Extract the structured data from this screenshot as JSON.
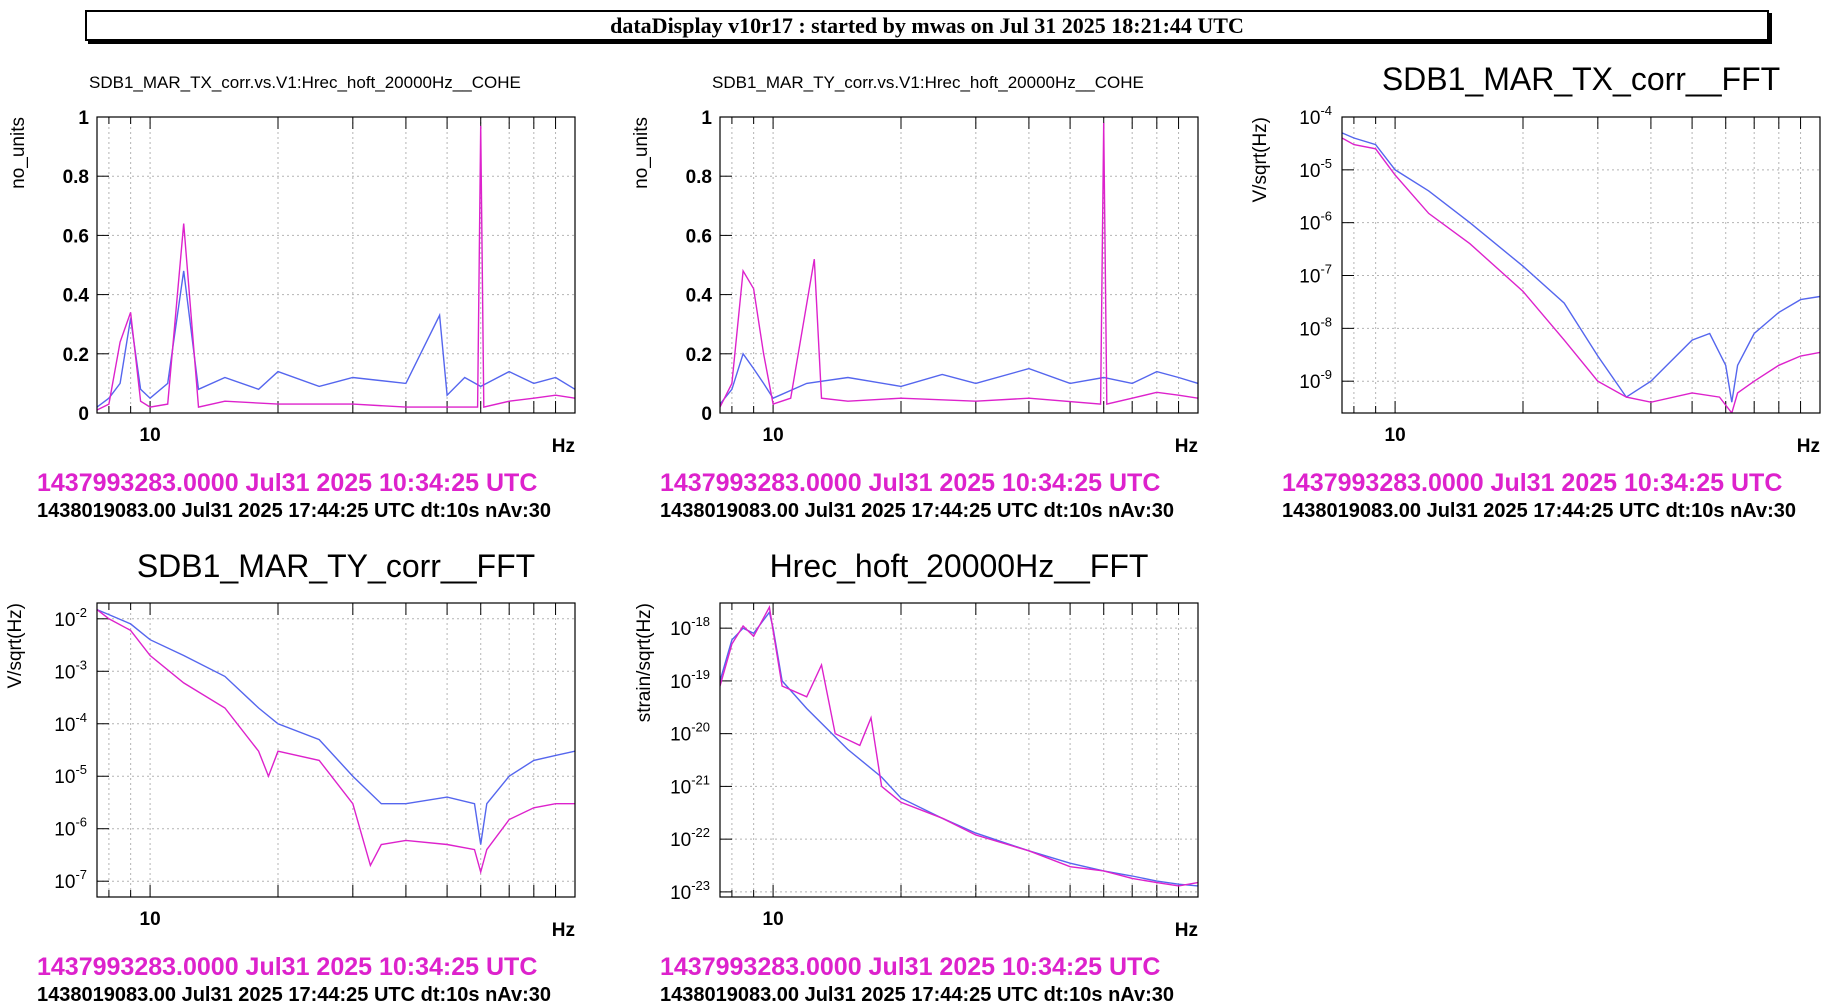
{
  "header": {
    "title": "dataDisplay v10r17 : started by mwas on Jul 31 2025 18:21:44 UTC"
  },
  "colors": {
    "blue": "#5566ee",
    "magenta": "#dd22cc",
    "grid": "#b4b4b4"
  },
  "chart_data": [
    {
      "id": "p1",
      "type": "line",
      "log_x": true,
      "log_y": false,
      "title": "SDB1_MAR_TX_corr.vs.V1:Hrec_hoft_20000Hz__COHE",
      "xlabel": "Hz",
      "ylabel": "no_units",
      "xlim": [
        7.5,
        100
      ],
      "ylim": [
        0,
        1
      ],
      "ytick_labels": [
        "0",
        "0.2",
        "0.4",
        "0.6",
        "0.8",
        "1"
      ],
      "xtick_labels": [
        "10"
      ],
      "footer_time": "1437993283.0000 Jul31 2025 10:34:25 UTC",
      "footer_info": "1438019083.00 Jul31 2025 17:44:25 UTC dt:10s nAv:30",
      "series": [
        {
          "color": "blue",
          "points": [
            [
              7.5,
              0.02
            ],
            [
              8,
              0.05
            ],
            [
              8.5,
              0.1
            ],
            [
              9,
              0.32
            ],
            [
              9.5,
              0.08
            ],
            [
              10,
              0.05
            ],
            [
              11,
              0.1
            ],
            [
              12,
              0.48
            ],
            [
              13,
              0.08
            ],
            [
              15,
              0.12
            ],
            [
              18,
              0.08
            ],
            [
              20,
              0.14
            ],
            [
              25,
              0.09
            ],
            [
              30,
              0.12
            ],
            [
              40,
              0.1
            ],
            [
              48,
              0.33
            ],
            [
              50,
              0.06
            ],
            [
              55,
              0.12
            ],
            [
              60,
              0.09
            ],
            [
              70,
              0.14
            ],
            [
              80,
              0.1
            ],
            [
              90,
              0.12
            ],
            [
              100,
              0.08
            ]
          ]
        },
        {
          "color": "magenta",
          "points": [
            [
              7.5,
              0.01
            ],
            [
              8,
              0.03
            ],
            [
              8.5,
              0.24
            ],
            [
              9,
              0.34
            ],
            [
              9.5,
              0.04
            ],
            [
              10,
              0.02
            ],
            [
              11,
              0.03
            ],
            [
              12,
              0.64
            ],
            [
              13,
              0.02
            ],
            [
              15,
              0.04
            ],
            [
              20,
              0.03
            ],
            [
              30,
              0.03
            ],
            [
              40,
              0.02
            ],
            [
              59,
              0.02
            ],
            [
              60,
              0.97
            ],
            [
              61,
              0.02
            ],
            [
              70,
              0.04
            ],
            [
              80,
              0.05
            ],
            [
              90,
              0.06
            ],
            [
              100,
              0.05
            ]
          ]
        }
      ]
    },
    {
      "id": "p2",
      "type": "line",
      "log_x": true,
      "log_y": false,
      "title": "SDB1_MAR_TY_corr.vs.V1:Hrec_hoft_20000Hz__COHE",
      "xlabel": "Hz",
      "ylabel": "no_units",
      "xlim": [
        7.5,
        100
      ],
      "ylim": [
        0,
        1
      ],
      "ytick_labels": [
        "0",
        "0.2",
        "0.4",
        "0.6",
        "0.8",
        "1"
      ],
      "xtick_labels": [
        "10"
      ],
      "footer_time": "1437993283.0000 Jul31 2025 10:34:25 UTC",
      "footer_info": "1438019083.00 Jul31 2025 17:44:25 UTC dt:10s nAv:30",
      "series": [
        {
          "color": "blue",
          "points": [
            [
              7.5,
              0.03
            ],
            [
              8,
              0.08
            ],
            [
              8.5,
              0.2
            ],
            [
              9,
              0.15
            ],
            [
              9.5,
              0.1
            ],
            [
              10,
              0.05
            ],
            [
              12,
              0.1
            ],
            [
              15,
              0.12
            ],
            [
              20,
              0.09
            ],
            [
              25,
              0.13
            ],
            [
              30,
              0.1
            ],
            [
              40,
              0.15
            ],
            [
              50,
              0.1
            ],
            [
              60,
              0.12
            ],
            [
              70,
              0.1
            ],
            [
              80,
              0.14
            ],
            [
              90,
              0.12
            ],
            [
              100,
              0.1
            ]
          ]
        },
        {
          "color": "magenta",
          "points": [
            [
              7.5,
              0.02
            ],
            [
              8,
              0.1
            ],
            [
              8.5,
              0.48
            ],
            [
              9,
              0.42
            ],
            [
              9.5,
              0.2
            ],
            [
              10,
              0.03
            ],
            [
              11,
              0.05
            ],
            [
              12.5,
              0.52
            ],
            [
              13,
              0.05
            ],
            [
              15,
              0.04
            ],
            [
              20,
              0.05
            ],
            [
              30,
              0.04
            ],
            [
              40,
              0.05
            ],
            [
              59,
              0.03
            ],
            [
              60,
              0.98
            ],
            [
              61,
              0.03
            ],
            [
              70,
              0.05
            ],
            [
              80,
              0.07
            ],
            [
              90,
              0.06
            ],
            [
              100,
              0.05
            ]
          ]
        }
      ]
    },
    {
      "id": "p3",
      "type": "line",
      "log_x": true,
      "log_y": true,
      "title": "SDB1_MAR_TX_corr__FFT",
      "xlabel": "Hz",
      "ylabel": "V/sqrt(Hz)",
      "xlim": [
        7.5,
        100
      ],
      "ylim": [
        2.5e-10,
        0.0001
      ],
      "ytick_exponents": [
        -4,
        -5,
        -6,
        -7,
        -8,
        -9
      ],
      "xtick_labels": [
        "10"
      ],
      "footer_time": "1437993283.0000 Jul31 2025 10:34:25 UTC",
      "footer_info": "1438019083.00 Jul31 2025 17:44:25 UTC dt:10s nAv:30",
      "series": [
        {
          "color": "blue",
          "points": [
            [
              7.5,
              5e-05
            ],
            [
              8,
              4e-05
            ],
            [
              9,
              3e-05
            ],
            [
              10,
              1e-05
            ],
            [
              12,
              4e-06
            ],
            [
              15,
              1e-06
            ],
            [
              20,
              1.5e-07
            ],
            [
              25,
              3e-08
            ],
            [
              30,
              3e-09
            ],
            [
              35,
              5e-10
            ],
            [
              40,
              1e-09
            ],
            [
              50,
              6e-09
            ],
            [
              55,
              8e-09
            ],
            [
              60,
              2e-09
            ],
            [
              62,
              4e-10
            ],
            [
              64,
              2e-09
            ],
            [
              70,
              8e-09
            ],
            [
              80,
              2e-08
            ],
            [
              90,
              3.5e-08
            ],
            [
              100,
              4e-08
            ]
          ]
        },
        {
          "color": "magenta",
          "points": [
            [
              7.5,
              4e-05
            ],
            [
              8,
              3e-05
            ],
            [
              9,
              2.5e-05
            ],
            [
              10,
              8e-06
            ],
            [
              12,
              1.5e-06
            ],
            [
              15,
              4e-07
            ],
            [
              20,
              5e-08
            ],
            [
              25,
              6e-09
            ],
            [
              30,
              1e-09
            ],
            [
              35,
              5e-10
            ],
            [
              40,
              4e-10
            ],
            [
              50,
              6e-10
            ],
            [
              58,
              5e-10
            ],
            [
              62,
              2.5e-10
            ],
            [
              64,
              6e-10
            ],
            [
              70,
              1e-09
            ],
            [
              80,
              2e-09
            ],
            [
              90,
              3e-09
            ],
            [
              100,
              3.5e-09
            ]
          ]
        }
      ]
    },
    {
      "id": "p4",
      "type": "line",
      "log_x": true,
      "log_y": true,
      "title": "SDB1_MAR_TY_corr__FFT",
      "xlabel": "Hz",
      "ylabel": "V/sqrt(Hz)",
      "xlim": [
        7.5,
        100
      ],
      "ylim": [
        5e-08,
        0.02
      ],
      "ytick_exponents": [
        -2,
        -3,
        -4,
        -5,
        -6,
        -7
      ],
      "xtick_labels": [
        "10"
      ],
      "footer_time": "1437993283.0000 Jul31 2025 10:34:25 UTC",
      "footer_info": "1438019083.00 Jul31 2025 17:44:25 UTC dt:10s nAv:30",
      "series": [
        {
          "color": "blue",
          "points": [
            [
              7.5,
              0.015
            ],
            [
              8,
              0.012
            ],
            [
              9,
              0.008
            ],
            [
              10,
              0.004
            ],
            [
              12,
              0.002
            ],
            [
              15,
              0.0008
            ],
            [
              18,
              0.0002
            ],
            [
              20,
              0.0001
            ],
            [
              25,
              5e-05
            ],
            [
              30,
              1e-05
            ],
            [
              35,
              3e-06
            ],
            [
              40,
              3e-06
            ],
            [
              50,
              4e-06
            ],
            [
              58,
              3e-06
            ],
            [
              60,
              5e-07
            ],
            [
              62,
              3e-06
            ],
            [
              70,
              1e-05
            ],
            [
              80,
              2e-05
            ],
            [
              90,
              2.5e-05
            ],
            [
              100,
              3e-05
            ]
          ]
        },
        {
          "color": "magenta",
          "points": [
            [
              7.5,
              0.015
            ],
            [
              8,
              0.01
            ],
            [
              9,
              0.006
            ],
            [
              10,
              0.002
            ],
            [
              12,
              0.0006
            ],
            [
              15,
              0.0002
            ],
            [
              18,
              3e-05
            ],
            [
              19,
              1e-05
            ],
            [
              20,
              3e-05
            ],
            [
              25,
              2e-05
            ],
            [
              30,
              3e-06
            ],
            [
              33,
              2e-07
            ],
            [
              35,
              5e-07
            ],
            [
              40,
              6e-07
            ],
            [
              50,
              5e-07
            ],
            [
              58,
              4e-07
            ],
            [
              60,
              1.5e-07
            ],
            [
              62,
              4e-07
            ],
            [
              70,
              1.5e-06
            ],
            [
              80,
              2.5e-06
            ],
            [
              90,
              3e-06
            ],
            [
              100,
              3e-06
            ]
          ]
        }
      ]
    },
    {
      "id": "p5",
      "type": "line",
      "log_x": true,
      "log_y": true,
      "title": "Hrec_hoft_20000Hz__FFT",
      "xlabel": "Hz",
      "ylabel": "strain/sqrt(Hz)",
      "xlim": [
        7.5,
        100
      ],
      "ylim": [
        8e-24,
        3e-18
      ],
      "ytick_exponents": [
        -18,
        -19,
        -20,
        -21,
        -22,
        -23
      ],
      "xtick_labels": [
        "10"
      ],
      "footer_time": "1437993283.0000 Jul31 2025 10:34:25 UTC",
      "footer_info": "1438019083.00 Jul31 2025 17:44:25 UTC dt:10s nAv:30",
      "series": [
        {
          "color": "blue",
          "points": [
            [
              7.5,
              1e-19
            ],
            [
              8,
              6e-19
            ],
            [
              8.5,
              1e-18
            ],
            [
              9,
              8e-19
            ],
            [
              9.8,
              2e-18
            ],
            [
              10,
              1e-18
            ],
            [
              10.5,
              1e-19
            ],
            [
              12,
              3e-20
            ],
            [
              15,
              5e-21
            ],
            [
              18,
              1.5e-21
            ],
            [
              20,
              6e-22
            ],
            [
              25,
              2.5e-22
            ],
            [
              30,
              1.3e-22
            ],
            [
              40,
              6e-23
            ],
            [
              50,
              3.5e-23
            ],
            [
              60,
              2.5e-23
            ],
            [
              70,
              2e-23
            ],
            [
              80,
              1.6e-23
            ],
            [
              90,
              1.4e-23
            ],
            [
              100,
              1.3e-23
            ]
          ]
        },
        {
          "color": "magenta",
          "points": [
            [
              7.5,
              8e-20
            ],
            [
              8,
              5e-19
            ],
            [
              8.5,
              1.1e-18
            ],
            [
              9,
              7e-19
            ],
            [
              9.8,
              2.5e-18
            ],
            [
              10,
              9e-19
            ],
            [
              10.5,
              8e-20
            ],
            [
              12,
              5e-20
            ],
            [
              13,
              2e-19
            ],
            [
              14,
              1e-20
            ],
            [
              16,
              6e-21
            ],
            [
              17,
              2e-20
            ],
            [
              18,
              1e-21
            ],
            [
              20,
              5e-22
            ],
            [
              25,
              2.5e-22
            ],
            [
              30,
              1.2e-22
            ],
            [
              40,
              6e-23
            ],
            [
              50,
              3e-23
            ],
            [
              60,
              2.5e-23
            ],
            [
              70,
              1.8e-23
            ],
            [
              80,
              1.5e-23
            ],
            [
              90,
              1.3e-23
            ],
            [
              100,
              1.5e-23
            ]
          ]
        }
      ]
    }
  ]
}
